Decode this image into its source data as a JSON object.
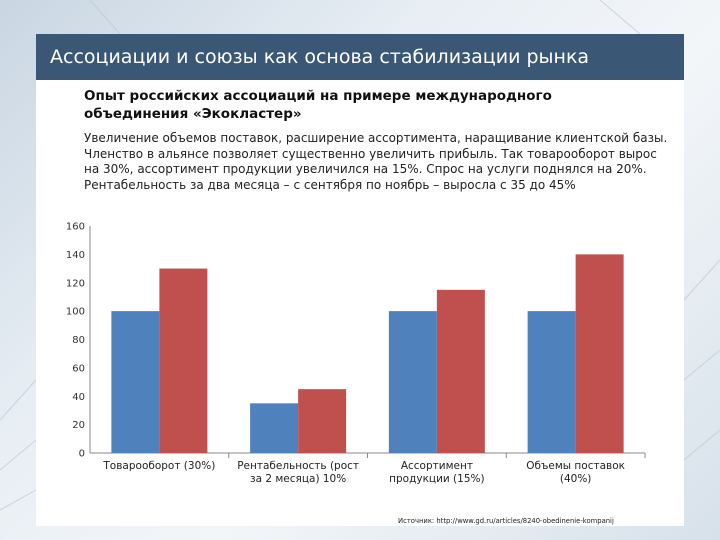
{
  "slide": {
    "title": "Ассоциации и союзы как основа стабилизации рынка",
    "subtitle": "Опыт российских ассоциаций на примере международного объединения «Экокластер»",
    "description": "Увеличение объемов поставок, расширение ассортимента, наращивание клиентской базы. Членство в альянсе позволяет существенно увеличить прибыль. Так товарооборот вырос на 30%, ассортимент продукции увеличился на 15%. Спрос на услуги поднялся на 20%. Рентабельность за два месяца – с сентября по ноябрь – выросла с 35 до 45%",
    "source": "Источник: http://www.gd.ru/articles/8240-obedinenie-kompanij"
  },
  "colors": {
    "series_before": "#4f81bd",
    "series_after": "#c0504d",
    "title_bar": "#3a5876"
  },
  "chart_data": {
    "type": "bar",
    "categories": [
      [
        "Товарооборот (30%)"
      ],
      [
        "Рентабельность (рост",
        "за 2 месяца) 10%"
      ],
      [
        "Ассортимент",
        "продукции (15%)"
      ],
      [
        "Объемы поставок",
        "(40%)"
      ]
    ],
    "series": [
      {
        "values": [
          100,
          35,
          100,
          100
        ],
        "color": "#4f81bd"
      },
      {
        "values": [
          130,
          45,
          115,
          140
        ],
        "color": "#c0504d"
      }
    ],
    "ylim": [
      0,
      160
    ],
    "yticks": [
      0,
      20,
      40,
      60,
      80,
      100,
      120,
      140,
      160
    ],
    "grid": false,
    "legend": "none"
  }
}
